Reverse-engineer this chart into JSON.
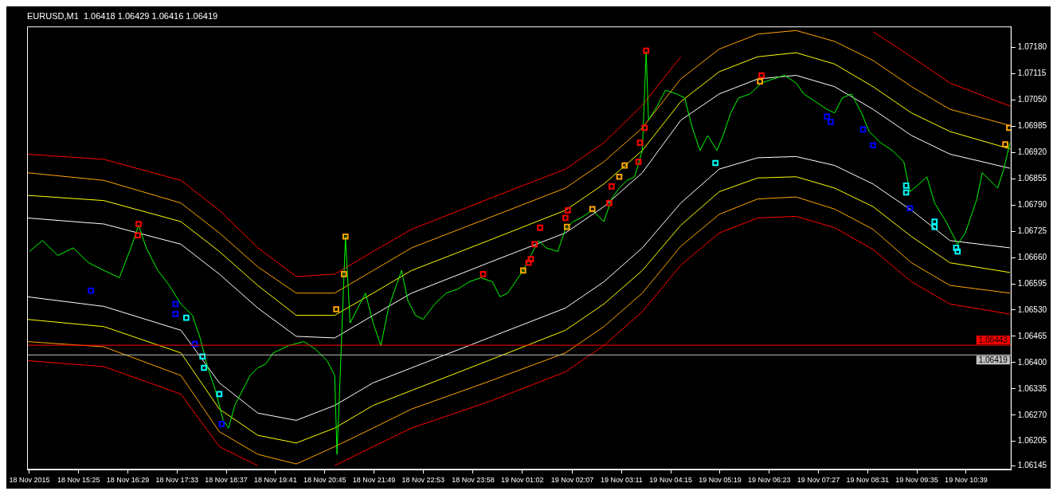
{
  "chart_data": {
    "type": "line",
    "title": "EURUSD,M1  1.06418 1.06429 1.06416 1.06419",
    "xlim": [
      "2015-11-18T14:18",
      "2015-11-19T11:38"
    ],
    "xticks": [
      {
        "value": "2015-11-18T14:21",
        "label": "18 Nov 2015"
      },
      {
        "value": "2015-11-18T15:25",
        "label": "18 Nov 15:25"
      },
      {
        "value": "2015-11-18T16:29",
        "label": "18 Nov 16:29"
      },
      {
        "value": "2015-11-18T17:33",
        "label": "18 Nov 17:33"
      },
      {
        "value": "2015-11-18T18:37",
        "label": "18 Nov 18:37"
      },
      {
        "value": "2015-11-18T19:41",
        "label": "18 Nov 19:41"
      },
      {
        "value": "2015-11-18T20:45",
        "label": "18 Nov 20:45"
      },
      {
        "value": "2015-11-18T21:49",
        "label": "18 Nov 21:49"
      },
      {
        "value": "2015-11-18T22:53",
        "label": "18 Nov 22:53"
      },
      {
        "value": "2015-11-18T23:58",
        "label": "18 Nov 23:58"
      },
      {
        "value": "2015-11-19T01:02",
        "label": "19 Nov 01:02"
      },
      {
        "value": "2015-11-19T02:07",
        "label": "19 Nov 02:07"
      },
      {
        "value": "2015-11-19T03:11",
        "label": "19 Nov 03:11"
      },
      {
        "value": "2015-11-19T04:15",
        "label": "19 Nov 04:15"
      },
      {
        "value": "2015-11-19T05:19",
        "label": "19 Nov 05:19"
      },
      {
        "value": "2015-11-19T06:23",
        "label": "19 Nov 06:23"
      },
      {
        "value": "2015-11-19T07:27",
        "label": "19 Nov 07:27"
      },
      {
        "value": "2015-11-19T08:31",
        "label": "19 Nov 08:31"
      },
      {
        "value": "2015-11-19T09:35",
        "label": "19 Nov 09:35"
      },
      {
        "value": "2015-11-19T10:39",
        "label": "19 Nov 10:39"
      }
    ],
    "ylim": [
      1.06135,
      1.07232
    ],
    "yticks": [
      {
        "value": 1.0718,
        "label": "1.07180"
      },
      {
        "value": 1.07115,
        "label": "1.07115"
      },
      {
        "value": 1.0705,
        "label": "1.07050"
      },
      {
        "value": 1.06985,
        "label": "1.06985"
      },
      {
        "value": 1.0692,
        "label": "1.06920"
      },
      {
        "value": 1.06855,
        "label": "1.06855"
      },
      {
        "value": 1.0679,
        "label": "1.06790"
      },
      {
        "value": 1.06725,
        "label": "1.06725"
      },
      {
        "value": 1.0666,
        "label": "1.06660"
      },
      {
        "value": 1.06595,
        "label": "1.06595"
      },
      {
        "value": 1.0653,
        "label": "1.06530"
      },
      {
        "value": 1.06465,
        "label": "1.06465"
      },
      {
        "value": 1.064,
        "label": "1.06400"
      },
      {
        "value": 1.06335,
        "label": "1.06335"
      },
      {
        "value": 1.0627,
        "label": "1.06270"
      },
      {
        "value": 1.06205,
        "label": "1.06205"
      },
      {
        "value": 1.06145,
        "label": "1.06145"
      }
    ],
    "grid": false,
    "legend": false,
    "x": [
      "2015-11-18T14:18",
      "2015-11-18T15:58",
      "2015-11-18T17:38",
      "2015-11-18T18:28",
      "2015-11-18T19:18",
      "2015-11-18T20:08",
      "2015-11-18T20:58",
      "2015-11-18T21:48",
      "2015-11-18T22:38",
      "2015-11-19T00:18",
      "2015-11-19T01:58",
      "2015-11-19T02:48",
      "2015-11-19T03:38",
      "2015-11-19T04:28",
      "2015-11-19T05:18",
      "2015-11-19T06:08",
      "2015-11-19T06:58",
      "2015-11-19T07:48",
      "2015-11-19T08:38",
      "2015-11-19T09:28",
      "2015-11-19T10:18",
      "2015-11-19T11:36"
    ],
    "ref_lines": [
      {
        "axis": "y",
        "value": 1.06443,
        "label": "1.06443",
        "color": "#ff0000"
      },
      {
        "axis": "y",
        "value": 1.06419,
        "label": "1.06419",
        "color": "#c0c0c0"
      }
    ],
    "series": [
      {
        "color": "#ff0000",
        "values": [
          1.06916,
          1.06903,
          1.06851,
          1.06777,
          1.06684,
          1.06613,
          1.06619,
          1.06675,
          1.0673,
          1.06805,
          1.06879,
          1.06944,
          1.07037,
          1.07157,
          null,
          null,
          null,
          null,
          1.07219,
          1.07157,
          1.07092,
          1.07035
        ]
      },
      {
        "color": "#ffa500",
        "values": [
          1.0687,
          1.06851,
          1.06795,
          1.06721,
          1.06637,
          1.06572,
          1.06572,
          1.06628,
          1.06684,
          1.06758,
          1.06832,
          1.06897,
          1.06981,
          1.07102,
          1.07176,
          1.07213,
          1.07222,
          1.07195,
          1.07148,
          1.07083,
          1.07027,
          1.06987
        ]
      },
      {
        "color": "#ffff00",
        "values": [
          1.06814,
          1.06801,
          1.06749,
          1.06675,
          1.06591,
          1.06517,
          1.06517,
          1.06572,
          1.06628,
          1.06702,
          1.06777,
          1.06842,
          1.06925,
          1.07046,
          1.0712,
          1.07157,
          1.07167,
          1.07139,
          1.07083,
          1.07018,
          1.06972,
          1.06929
        ]
      },
      {
        "color": "#ffffff",
        "values": [
          1.06758,
          1.06743,
          1.06693,
          1.06619,
          1.06535,
          1.06465,
          1.06461,
          1.06517,
          1.06572,
          1.06647,
          1.06721,
          1.06786,
          1.0687,
          1.07,
          1.07065,
          1.07102,
          1.07111,
          1.07083,
          1.07027,
          1.06962,
          1.06916,
          1.06881
        ]
      },
      {
        "color": "#ffffff",
        "values": [
          1.06563,
          1.06539,
          1.0648,
          1.0635,
          1.06275,
          1.06257,
          1.06294,
          1.0635,
          1.06387,
          1.06461,
          1.06535,
          1.066,
          1.06684,
          1.06795,
          1.06879,
          1.06907,
          1.0691,
          1.06888,
          1.06842,
          1.06777,
          1.06702,
          1.06684
        ]
      },
      {
        "color": "#ffff00",
        "values": [
          1.06507,
          1.06489,
          1.06424,
          1.06285,
          1.0622,
          1.06201,
          1.06238,
          1.06294,
          1.06331,
          1.06405,
          1.0648,
          1.06545,
          1.06628,
          1.0674,
          1.06823,
          1.06857,
          1.0686,
          1.06832,
          1.06786,
          1.06712,
          1.06647,
          1.06623
        ]
      },
      {
        "color": "#ffa500",
        "values": [
          1.06452,
          1.06439,
          1.06368,
          1.06229,
          1.06173,
          1.06149,
          1.06192,
          1.06238,
          1.06285,
          1.06353,
          1.06424,
          1.06489,
          1.06572,
          1.06688,
          1.06767,
          1.06805,
          1.0681,
          1.0678,
          1.0673,
          1.06647,
          1.06591,
          1.06572
        ]
      },
      {
        "color": "#ff0000",
        "values": [
          1.06405,
          1.0639,
          1.06322,
          1.06192,
          1.06145,
          null,
          1.06145,
          1.06192,
          1.06238,
          1.06303,
          1.06377,
          1.06442,
          1.06526,
          1.06641,
          1.06721,
          1.06758,
          1.06762,
          1.06734,
          1.0668,
          1.066,
          1.06545,
          1.0652
        ]
      },
      {
        "color": "#00ff00",
        "x": [
          "2015-11-18T14:21",
          "2015-11-18T14:38",
          "2015-11-18T14:58",
          "2015-11-18T15:18",
          "2015-11-18T15:38",
          "2015-11-18T15:58",
          "2015-11-18T16:18",
          "2015-11-18T16:33",
          "2015-11-18T16:43",
          "2015-11-18T16:53",
          "2015-11-18T17:08",
          "2015-11-18T17:23",
          "2015-11-18T17:38",
          "2015-11-18T17:53",
          "2015-11-18T18:03",
          "2015-11-18T18:13",
          "2015-11-18T18:23",
          "2015-11-18T18:33",
          "2015-11-18T18:40",
          "2015-11-18T18:48",
          "2015-11-18T18:58",
          "2015-11-18T19:08",
          "2015-11-18T19:18",
          "2015-11-18T19:28",
          "2015-11-18T19:38",
          "2015-11-18T19:58",
          "2015-11-18T20:18",
          "2015-11-18T20:33",
          "2015-11-18T20:48",
          "2015-11-18T20:58",
          "2015-11-18T21:01",
          "2015-11-18T21:04",
          "2015-11-18T21:12",
          "2015-11-18T21:18",
          "2015-11-18T21:28",
          "2015-11-18T21:38",
          "2015-11-18T21:48",
          "2015-11-18T21:58",
          "2015-11-18T22:08",
          "2015-11-18T22:18",
          "2015-11-18T22:25",
          "2015-11-18T22:33",
          "2015-11-18T22:43",
          "2015-11-18T22:53",
          "2015-11-18T23:08",
          "2015-11-18T23:23",
          "2015-11-18T23:38",
          "2015-11-18T23:53",
          "2015-11-19T00:08",
          "2015-11-19T00:23",
          "2015-11-19T00:33",
          "2015-11-19T00:43",
          "2015-11-19T00:53",
          "2015-11-19T01:03",
          "2015-11-19T01:13",
          "2015-11-19T01:23",
          "2015-11-19T01:33",
          "2015-11-19T01:48",
          "2015-11-19T01:58",
          "2015-11-19T02:08",
          "2015-11-19T02:18",
          "2015-11-19T02:33",
          "2015-11-19T02:48",
          "2015-11-19T02:58",
          "2015-11-19T03:08",
          "2015-11-19T03:18",
          "2015-11-19T03:28",
          "2015-11-19T03:38",
          "2015-11-19T03:43",
          "2015-11-19T03:46",
          "2015-11-19T03:58",
          "2015-11-19T04:08",
          "2015-11-19T04:23",
          "2015-11-19T04:33",
          "2015-11-19T04:43",
          "2015-11-19T04:53",
          "2015-11-19T05:03",
          "2015-11-19T05:15",
          "2015-11-19T05:23",
          "2015-11-19T05:33",
          "2015-11-19T05:43",
          "2015-11-19T05:58",
          "2015-11-19T06:13",
          "2015-11-19T06:28",
          "2015-11-19T06:43",
          "2015-11-19T06:58",
          "2015-11-19T07:08",
          "2015-11-19T07:23",
          "2015-11-19T07:38",
          "2015-11-19T07:48",
          "2015-11-19T07:58",
          "2015-11-19T08:10",
          "2015-11-19T08:23",
          "2015-11-19T08:33",
          "2015-11-19T08:48",
          "2015-11-19T09:03",
          "2015-11-19T09:18",
          "2015-11-19T09:26",
          "2015-11-19T09:38",
          "2015-11-19T09:48",
          "2015-11-19T09:58",
          "2015-11-19T10:13",
          "2015-11-19T10:28",
          "2015-11-19T10:38",
          "2015-11-19T10:53",
          "2015-11-19T11:00",
          "2015-11-19T11:10",
          "2015-11-19T11:20",
          "2015-11-19T11:28",
          "2015-11-19T11:36"
        ],
        "values": [
          1.06675,
          1.06702,
          1.06665,
          1.06684,
          1.06647,
          1.06628,
          1.0661,
          1.06684,
          1.0674,
          1.06684,
          1.06628,
          1.06591,
          1.06545,
          1.06517,
          1.06461,
          1.06387,
          1.06331,
          1.06257,
          1.06238,
          1.06294,
          1.06331,
          1.06368,
          1.06387,
          1.06396,
          1.06424,
          1.06442,
          1.06452,
          1.06433,
          1.06405,
          1.06368,
          1.06173,
          1.06312,
          1.06712,
          1.06498,
          1.06535,
          1.06572,
          1.06498,
          1.06442,
          1.06535,
          1.06591,
          1.06628,
          1.06554,
          1.06517,
          1.06507,
          1.06545,
          1.06572,
          1.06582,
          1.066,
          1.0661,
          1.066,
          1.06563,
          1.06572,
          1.066,
          1.06628,
          1.06665,
          1.06702,
          1.06684,
          1.06675,
          1.0673,
          1.06749,
          1.06758,
          1.06777,
          1.06749,
          1.06805,
          1.06832,
          1.06851,
          1.0686,
          1.06925,
          1.0717,
          1.07,
          1.07037,
          1.07074,
          1.07065,
          1.07055,
          1.06981,
          1.06925,
          1.06962,
          1.06925,
          1.06962,
          1.07018,
          1.07055,
          1.07065,
          1.07092,
          1.07102,
          1.07111,
          1.07092,
          1.07065,
          1.07046,
          1.07027,
          1.07018,
          1.07055,
          1.07065,
          1.07018,
          1.06972,
          1.06944,
          1.06925,
          1.06897,
          1.06823,
          1.06842,
          1.0686,
          1.06795,
          1.06749,
          1.06693,
          1.06721,
          1.06805,
          1.0687,
          1.06851,
          1.06832,
          1.06879,
          1.06944
        ]
      },
      {
        "type": "scatter",
        "marker": "square",
        "color": "#ff0000",
        "x": [
          "2015-11-18T16:43",
          "2015-11-18T16:42",
          "2015-11-19T00:11",
          "2015-11-19T01:10",
          "2015-11-19T01:13",
          "2015-11-19T01:18",
          "2015-11-19T01:25",
          "2015-11-19T01:58",
          "2015-11-19T02:01",
          "2015-11-19T02:55",
          "2015-11-19T02:58",
          "2015-11-19T03:33",
          "2015-11-19T03:35",
          "2015-11-19T03:41",
          "2015-11-19T03:43",
          "2015-11-19T06:13"
        ],
        "values": [
          1.06743,
          1.06715,
          1.06619,
          1.06647,
          1.06656,
          1.06693,
          1.06734,
          1.06758,
          1.06777,
          1.06795,
          1.06836,
          1.06897,
          1.06944,
          1.06981,
          1.07172,
          1.07111
        ]
      },
      {
        "type": "scatter",
        "marker": "square",
        "color": "#ffa500",
        "x": [
          "2015-11-18T21:00",
          "2015-11-18T21:10",
          "2015-11-18T21:12",
          "2015-11-19T01:03",
          "2015-11-19T02:00",
          "2015-11-19T02:33",
          "2015-11-19T03:08",
          "2015-11-19T03:15",
          "2015-11-19T06:11",
          "2015-11-19T11:30",
          "2015-11-19T11:35"
        ],
        "values": [
          1.06532,
          1.06619,
          1.06712,
          1.06628,
          1.06736,
          1.0678,
          1.0686,
          1.06888,
          1.07096,
          1.0694,
          1.06981
        ]
      },
      {
        "type": "scatter",
        "marker": "square",
        "color": "#0000ff",
        "x": [
          "2015-11-18T15:41",
          "2015-11-18T17:31",
          "2015-11-18T17:31",
          "2015-11-18T17:56",
          "2015-11-18T18:31",
          "2015-11-19T07:38",
          "2015-11-19T07:43",
          "2015-11-19T08:25",
          "2015-11-19T08:38",
          "2015-11-19T09:26"
        ],
        "values": [
          1.06578,
          1.06545,
          1.0652,
          1.06446,
          1.06248,
          1.07009,
          1.06996,
          1.06977,
          1.06938,
          1.06782
        ]
      },
      {
        "type": "scatter",
        "marker": "square",
        "color": "#00ffff",
        "x": [
          "2015-11-18T17:45",
          "2015-11-18T18:06",
          "2015-11-18T18:08",
          "2015-11-18T18:28",
          "2015-11-19T05:13",
          "2015-11-19T09:21",
          "2015-11-19T09:21",
          "2015-11-19T09:58",
          "2015-11-19T09:58",
          "2015-11-19T10:26",
          "2015-11-19T10:28"
        ],
        "values": [
          1.06511,
          1.06415,
          1.06387,
          1.06322,
          1.06894,
          1.06838,
          1.06821,
          1.06749,
          1.06736,
          1.06684,
          1.06675
        ]
      }
    ]
  }
}
